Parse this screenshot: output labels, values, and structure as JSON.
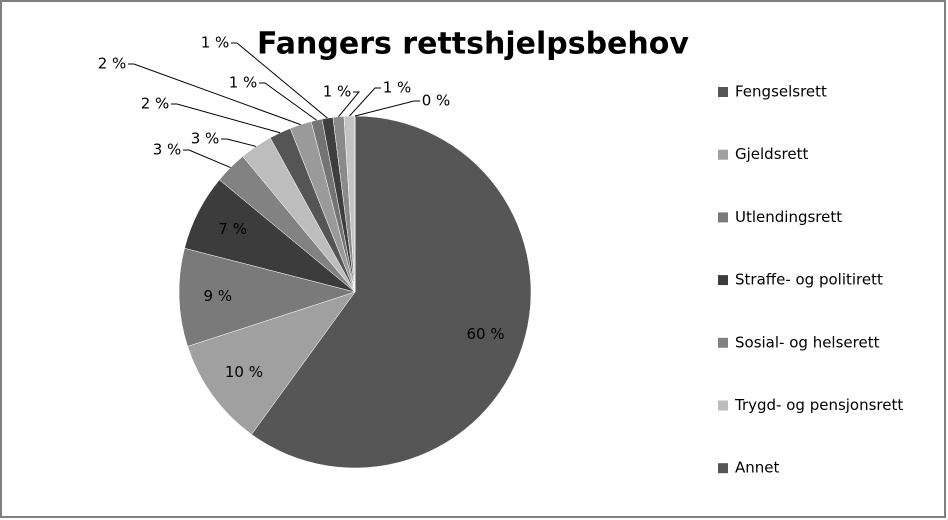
{
  "chart_data": {
    "type": "pie",
    "title": "Fangers rettshjelpsbehov",
    "categories": [
      "Fengselsrett",
      "Gjeldsrett",
      "Utlendingsrett",
      "Straffe- og politirett",
      "Sosial- og helserett",
      "Trygd- og pensjonsrett",
      "Annet",
      null,
      null,
      null,
      null,
      null,
      null
    ],
    "values": [
      60,
      10,
      9,
      7,
      3,
      3,
      2,
      2,
      1,
      1,
      1,
      1,
      0
    ],
    "value_labels": [
      "60 %",
      "10 %",
      "9 %",
      "7 %",
      "3 %",
      "3 %",
      "2 %",
      "2 %",
      "1 %",
      "1 %",
      "1 %",
      "1 %",
      "0 %"
    ],
    "colors": [
      "#565656",
      "#a0a0a0",
      "#7a7a7a",
      "#3c3c3c",
      "#828282",
      "#bdbdbd",
      "#555555",
      "#9a9a9a",
      "#747474",
      "#3e3e3e",
      "#8a8a8a",
      "#c4c4c4",
      "#5a5a5a"
    ],
    "legend": "right"
  }
}
